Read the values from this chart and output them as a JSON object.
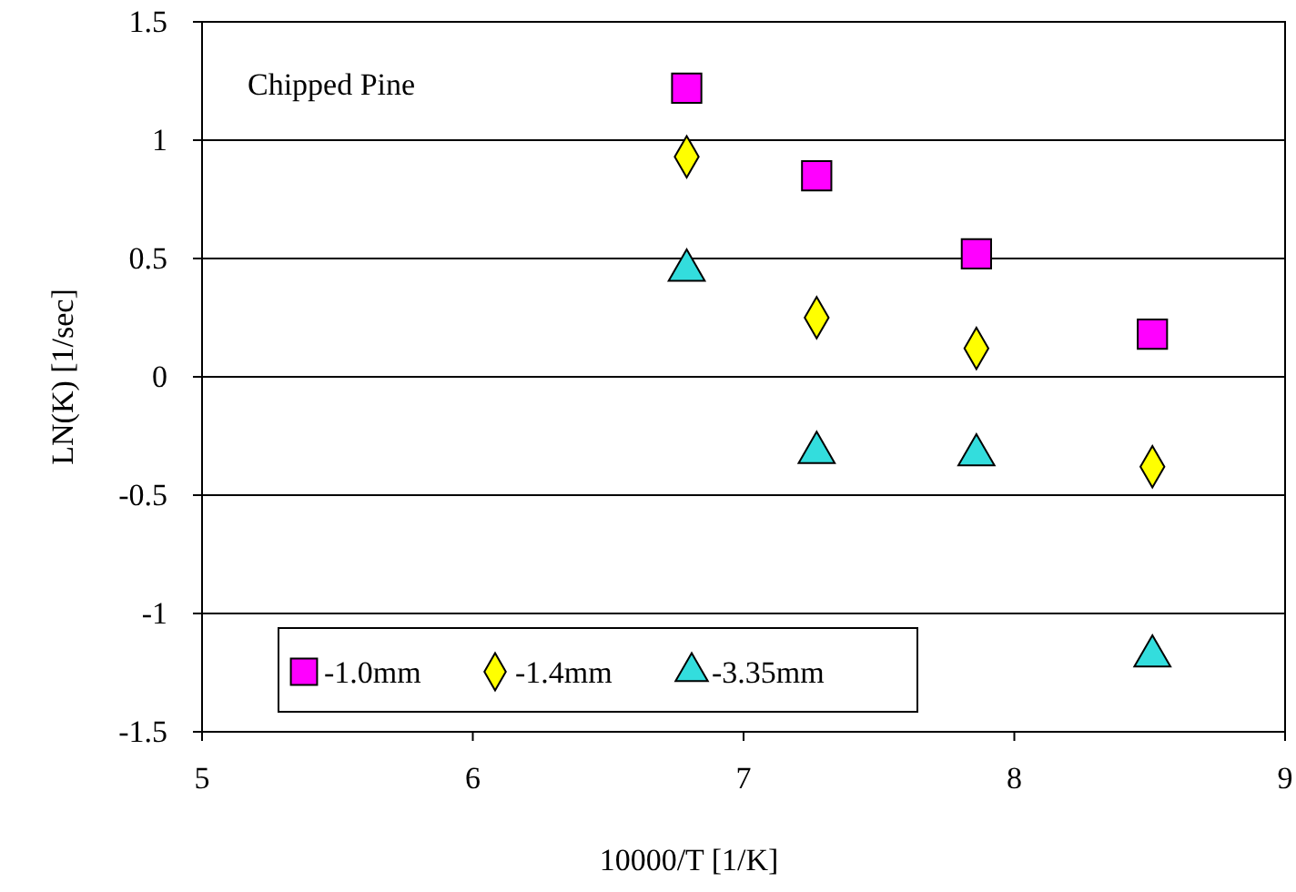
{
  "chart_data": {
    "type": "scatter",
    "title": "Chipped Pine",
    "xlabel": "10000/T    [1/K]",
    "ylabel": "LN(K)    [1/sec]",
    "xlim": [
      5,
      9
    ],
    "xticks": [
      5,
      6,
      7,
      8,
      9
    ],
    "ylim": [
      -1.5,
      1.5
    ],
    "yticks": [
      -1.5,
      -1,
      -0.5,
      0,
      0.5,
      1,
      1.5
    ],
    "grid": "y",
    "legend": "bottom left",
    "series": [
      {
        "name": "-1.0mm",
        "color": "#ff00ff",
        "marker": "square",
        "x": [
          6.79,
          7.27,
          7.86,
          8.51
        ],
        "values": [
          1.22,
          0.85,
          0.52,
          0.18
        ]
      },
      {
        "name": "-1.4mm",
        "color": "#ffff00",
        "marker": "diamond",
        "x": [
          6.79,
          7.27,
          7.86,
          8.51
        ],
        "values": [
          0.93,
          0.25,
          0.12,
          -0.38
        ]
      },
      {
        "name": "-3.35mm",
        "color": "#33dddd",
        "marker": "triangle",
        "x": [
          6.79,
          7.27,
          7.86,
          8.51
        ],
        "values": [
          0.45,
          -0.32,
          -0.33,
          -1.18
        ]
      }
    ]
  }
}
